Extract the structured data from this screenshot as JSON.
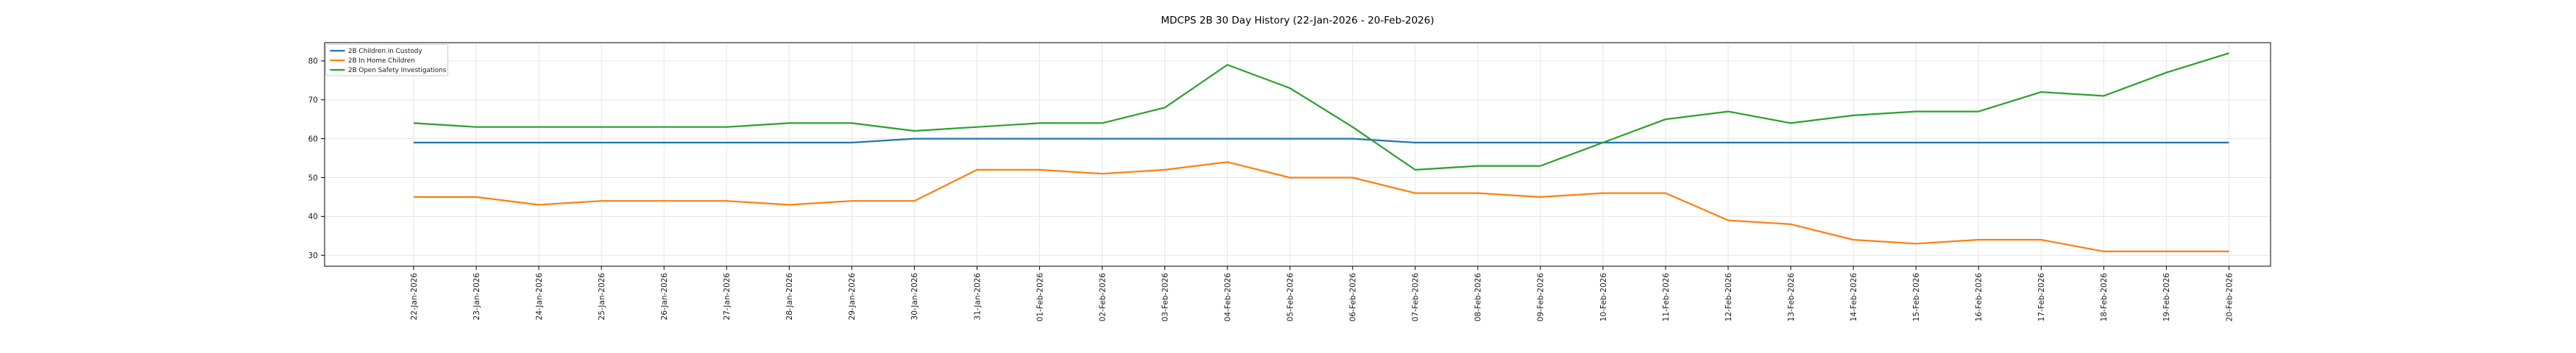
{
  "figure": {
    "title": "MDCPS 2B 30 Day History (22-Jan-2026 - 20-Feb-2026)"
  },
  "chart_data": {
    "type": "line",
    "title": "MDCPS 2B 30 Day History (22-Jan-2026 - 20-Feb-2026)",
    "xlabel": "",
    "ylabel": "",
    "x_labels": [
      "22-Jan-2026",
      "23-Jan-2026",
      "24-Jan-2026",
      "25-Jan-2026",
      "26-Jan-2026",
      "27-Jan-2026",
      "28-Jan-2026",
      "29-Jan-2026",
      "30-Jan-2026",
      "31-Jan-2026",
      "01-Feb-2026",
      "02-Feb-2026",
      "03-Feb-2026",
      "04-Feb-2026",
      "05-Feb-2026",
      "06-Feb-2026",
      "07-Feb-2026",
      "08-Feb-2026",
      "09-Feb-2026",
      "10-Feb-2026",
      "11-Feb-2026",
      "12-Feb-2026",
      "13-Feb-2026",
      "14-Feb-2026",
      "15-Feb-2026",
      "16-Feb-2026",
      "17-Feb-2026",
      "18-Feb-2026",
      "19-Feb-2026",
      "20-Feb-2026"
    ],
    "series": [
      {
        "name": "2B Children in Custody",
        "color": "#1f77b4",
        "values": [
          59,
          59,
          59,
          59,
          59,
          59,
          59,
          59,
          60,
          60,
          60,
          60,
          60,
          60,
          60,
          60,
          59,
          59,
          59,
          59,
          59,
          59,
          59,
          59,
          59,
          59,
          59,
          59,
          59,
          59
        ]
      },
      {
        "name": "2B In Home Children",
        "color": "#ff7f0e",
        "values": [
          45,
          45,
          43,
          44,
          44,
          44,
          43,
          44,
          44,
          52,
          52,
          51,
          52,
          54,
          50,
          50,
          46,
          46,
          45,
          46,
          46,
          39,
          38,
          34,
          33,
          34,
          34,
          31,
          31,
          31
        ]
      },
      {
        "name": "2B Open Safety Investigations",
        "color": "#2ca02c",
        "values": [
          64,
          63,
          63,
          63,
          63,
          63,
          64,
          64,
          62,
          63,
          64,
          64,
          68,
          79,
          73,
          63,
          52,
          53,
          53,
          59,
          65,
          67,
          64,
          66,
          67,
          67,
          72,
          71,
          77,
          82
        ]
      }
    ],
    "yticks": [
      30,
      40,
      50,
      60,
      70,
      80
    ],
    "ylim": [
      27.2,
      84.7
    ],
    "grid": true,
    "grid_color": "#e5e5e5",
    "axis_color": "#000000",
    "tick_label_color": "#1a1a1a",
    "legend_position": "upper-left",
    "x_tick_rotation": 90
  }
}
